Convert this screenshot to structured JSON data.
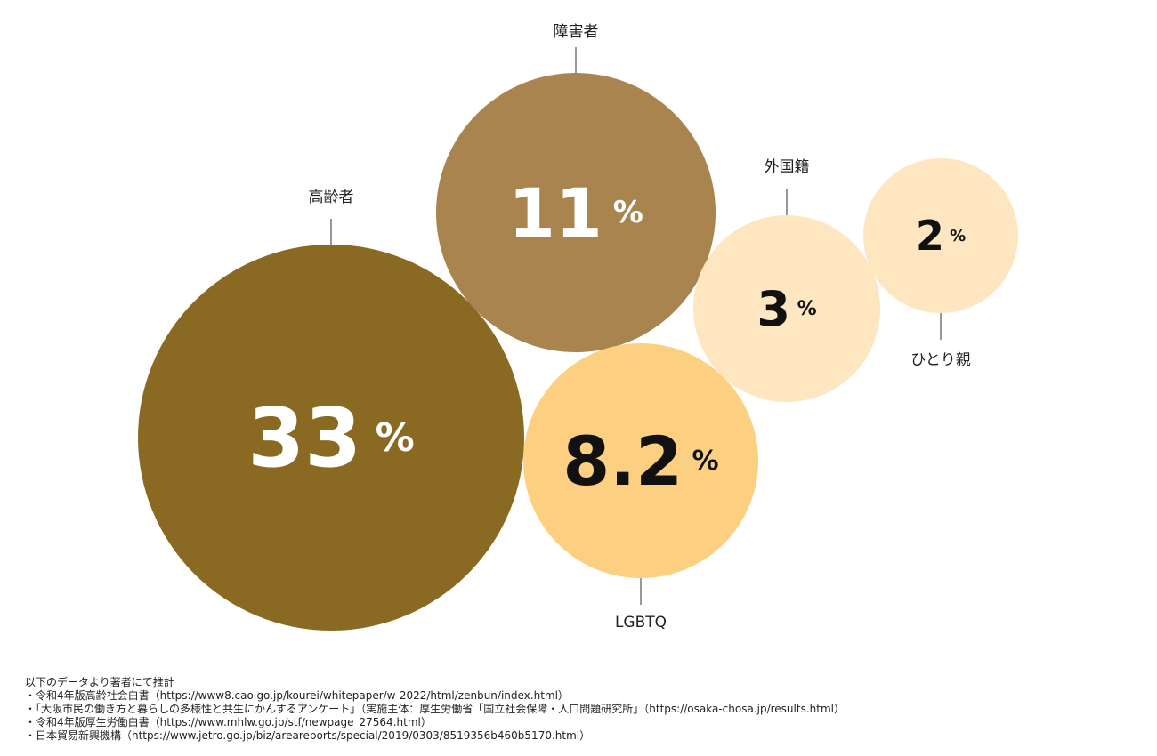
{
  "chart_data": {
    "type": "bubble",
    "unit": "%",
    "bubbles": [
      {
        "name": "高齢者",
        "value": "33",
        "color": "#8a6a22",
        "text_color": "#ffffff"
      },
      {
        "name": "障害者",
        "value": "11",
        "color": "#a9844f",
        "text_color": "#ffffff"
      },
      {
        "name": "LGBTQ",
        "value": "8.2",
        "color": "#fcd080",
        "text_color": "#111111"
      },
      {
        "name": "外国籍",
        "value": "3",
        "color": "#fde6c0",
        "text_color": "#111111"
      },
      {
        "name": "ひとり親",
        "value": "2",
        "color": "#fde6c0",
        "text_color": "#111111"
      }
    ]
  },
  "sources": {
    "heading": "以下のデータより著者にて推計",
    "items": [
      "・令和4年版高齢社会白書（https://www8.cao.go.jp/kourei/whitepaper/w-2022/html/zenbun/index.html）",
      "・「大阪市民の働き方と暮らしの多様性と共生にかんするアンケート」（実施主体：厚生労働省「国立社会保障・人口問題研究所」（https://osaka-chosa.jp/results.html）",
      "・令和4年版厚生労働白書（https://www.mhlw.go.jp/stf/newpage_27564.html）",
      "・日本貿易新興機構（https://www.jetro.go.jp/biz/areareports/special/2019/0303/8519356b460b5170.html）"
    ]
  }
}
